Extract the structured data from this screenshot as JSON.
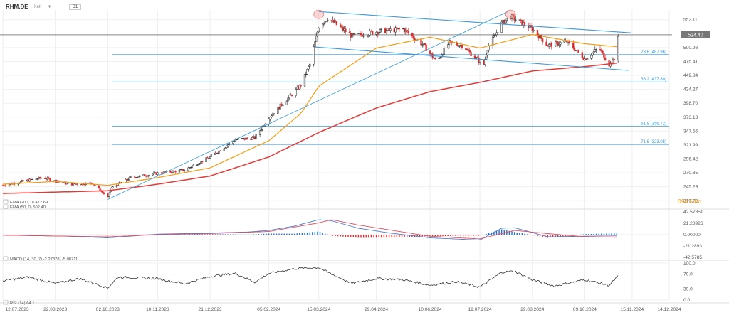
{
  "header": {
    "symbol": "RHM.DE",
    "exchange": "Xetr",
    "timeframe": "D1"
  },
  "countdown": "09h 54m",
  "last_price_label": "524.40",
  "colors": {
    "up": "#222222",
    "down": "#d32f2f",
    "ema200": "#e53935",
    "ema50": "#f39c12",
    "channel": "#3a9ad9",
    "fib": "#3a9ad9",
    "macd_line": "#4a7bd0",
    "signal_line": "#e05060",
    "hist_up": "#1e6fd6",
    "hist_down": "#d32f2f",
    "rsi": "#333333",
    "countdown": "#f39c12"
  },
  "legends": {
    "ema200": "EMA (200, 0) 472.69",
    "ema50": "EMA (50, 0) 502.40",
    "macd": "MACD (14, 30, 7) -2.27878, -5.08711",
    "rsi": "RSI (14) 64.1"
  },
  "chart_data": [
    {
      "type": "candlestick",
      "panel": "price",
      "title": "RHM.DE",
      "x_ticks": [
        "12.07.2023",
        "22.08.2023",
        "02.10.2023",
        "10.11.2023",
        "21.12.2023",
        "05.02.2024",
        "15.03.2024",
        "29.04.2024",
        "10.06.2024",
        "19.07.2024",
        "29.08.2024",
        "09.10.2024",
        "15.11.2024",
        "14.12.2024"
      ],
      "x_range": [
        "12.07.2023",
        "14.12.2024"
      ],
      "y_ticks": [
        219.72,
        245.29,
        270.85,
        296.42,
        321.99,
        347.56,
        373.13,
        398.7,
        424.27,
        449.84,
        475.41,
        500.98,
        552.11
      ],
      "ylim": [
        207,
        570
      ],
      "last_price": 524.4,
      "close_anchors": [
        {
          "date": "12.07.2023",
          "close": 248
        },
        {
          "date": "12.08.2023",
          "close": 262
        },
        {
          "date": "02.09.2023",
          "close": 250
        },
        {
          "date": "20.09.2023",
          "close": 252
        },
        {
          "date": "02.10.2023",
          "close": 226
        },
        {
          "date": "05.10.2023",
          "close": 243
        },
        {
          "date": "20.10.2023",
          "close": 262
        },
        {
          "date": "10.11.2023",
          "close": 270
        },
        {
          "date": "01.12.2023",
          "close": 276
        },
        {
          "date": "21.12.2023",
          "close": 300
        },
        {
          "date": "10.01.2024",
          "close": 332
        },
        {
          "date": "25.01.2024",
          "close": 335
        },
        {
          "date": "05.02.2024",
          "close": 373
        },
        {
          "date": "20.02.2024",
          "close": 408
        },
        {
          "date": "01.03.2024",
          "close": 432
        },
        {
          "date": "08.03.2024",
          "close": 470
        },
        {
          "date": "15.03.2024",
          "close": 540
        },
        {
          "date": "22.03.2024",
          "close": 555
        },
        {
          "date": "10.04.2024",
          "close": 522
        },
        {
          "date": "29.04.2024",
          "close": 530
        },
        {
          "date": "20.05.2024",
          "close": 535
        },
        {
          "date": "05.06.2024",
          "close": 505
        },
        {
          "date": "15.06.2024",
          "close": 475
        },
        {
          "date": "25.06.2024",
          "close": 510
        },
        {
          "date": "05.07.2024",
          "close": 505
        },
        {
          "date": "15.07.2024",
          "close": 483
        },
        {
          "date": "22.07.2024",
          "close": 470
        },
        {
          "date": "25.07.2024",
          "close": 500
        },
        {
          "date": "05.08.2024",
          "close": 545
        },
        {
          "date": "12.08.2024",
          "close": 558
        },
        {
          "date": "29.08.2024",
          "close": 535
        },
        {
          "date": "10.09.2024",
          "close": 505
        },
        {
          "date": "25.09.2024",
          "close": 512
        },
        {
          "date": "09.10.2024",
          "close": 480
        },
        {
          "date": "20.10.2024",
          "close": 500
        },
        {
          "date": "28.10.2024",
          "close": 470
        },
        {
          "date": "01.11.2024",
          "close": 478
        },
        {
          "date": "04.11.2024",
          "close": 524.4
        }
      ],
      "ema200_points": [
        {
          "date": "12.07.2023",
          "value": 233
        },
        {
          "date": "02.10.2023",
          "value": 238
        },
        {
          "date": "10.11.2023",
          "value": 250
        },
        {
          "date": "21.12.2023",
          "value": 265
        },
        {
          "date": "05.02.2024",
          "value": 300
        },
        {
          "date": "15.03.2024",
          "value": 345
        },
        {
          "date": "29.04.2024",
          "value": 390
        },
        {
          "date": "10.06.2024",
          "value": 420
        },
        {
          "date": "19.07.2024",
          "value": 437
        },
        {
          "date": "29.08.2024",
          "value": 458
        },
        {
          "date": "09.10.2024",
          "value": 466
        },
        {
          "date": "04.11.2024",
          "value": 472.69
        }
      ],
      "ema50_points": [
        {
          "date": "12.07.2023",
          "value": 250
        },
        {
          "date": "22.08.2023",
          "value": 255
        },
        {
          "date": "02.10.2023",
          "value": 248
        },
        {
          "date": "10.11.2023",
          "value": 262
        },
        {
          "date": "21.12.2023",
          "value": 280
        },
        {
          "date": "05.02.2024",
          "value": 330
        },
        {
          "date": "01.03.2024",
          "value": 380
        },
        {
          "date": "15.03.2024",
          "value": 430
        },
        {
          "date": "29.04.2024",
          "value": 500
        },
        {
          "date": "10.06.2024",
          "value": 520
        },
        {
          "date": "19.07.2024",
          "value": 500
        },
        {
          "date": "29.08.2024",
          "value": 525
        },
        {
          "date": "09.10.2024",
          "value": 508
        },
        {
          "date": "04.11.2024",
          "value": 502.4
        }
      ],
      "fibonacci": [
        {
          "label": "23.6 (487.96)",
          "value": 487.96
        },
        {
          "label": "38.2 (437.80)",
          "value": 437.8
        },
        {
          "label": "61.8 (356.72)",
          "value": 356.72
        },
        {
          "label": "71.6 (323.05)",
          "value": 323.05
        }
      ],
      "trendlines": [
        {
          "name": "channel-upper",
          "from": {
            "date": "15.03.2024",
            "value": 567
          },
          "to": {
            "date": "14.11.2024",
            "value": 528
          }
        },
        {
          "name": "channel-lower",
          "from": {
            "date": "12.03.2024",
            "value": 502
          },
          "to": {
            "date": "12.11.2024",
            "value": 459
          }
        },
        {
          "name": "rising-trend",
          "from": {
            "date": "02.10.2023",
            "value": 222
          },
          "to": {
            "date": "10.08.2024",
            "value": 567
          }
        }
      ],
      "highlights": [
        {
          "date": "15.03.2024",
          "value": 562
        },
        {
          "date": "12.08.2024",
          "value": 562
        }
      ]
    },
    {
      "type": "bar+line",
      "panel": "macd",
      "y_ticks": [
        42.57851,
        21.28926,
        0.0,
        -21.2893,
        -42.5785
      ],
      "ylim": [
        -42.5785,
        42.57851
      ],
      "macd_points": [
        {
          "date": "12.07.2023",
          "value": -1
        },
        {
          "date": "01.09.2023",
          "value": -3
        },
        {
          "date": "02.10.2023",
          "value": -6
        },
        {
          "date": "10.11.2023",
          "value": 1
        },
        {
          "date": "21.12.2023",
          "value": 3
        },
        {
          "date": "20.01.2024",
          "value": 5
        },
        {
          "date": "05.02.2024",
          "value": 8
        },
        {
          "date": "25.02.2024",
          "value": 16
        },
        {
          "date": "15.03.2024",
          "value": 28
        },
        {
          "date": "25.03.2024",
          "value": 26
        },
        {
          "date": "15.04.2024",
          "value": 12
        },
        {
          "date": "10.05.2024",
          "value": 3
        },
        {
          "date": "10.06.2024",
          "value": -6
        },
        {
          "date": "19.07.2024",
          "value": -10
        },
        {
          "date": "05.08.2024",
          "value": 12
        },
        {
          "date": "15.08.2024",
          "value": 13
        },
        {
          "date": "10.09.2024",
          "value": -4
        },
        {
          "date": "09.10.2024",
          "value": -3
        },
        {
          "date": "04.11.2024",
          "value": -2.28
        }
      ],
      "signal_points": [
        {
          "date": "12.07.2023",
          "value": -1
        },
        {
          "date": "02.10.2023",
          "value": -4
        },
        {
          "date": "10.11.2023",
          "value": 0
        },
        {
          "date": "21.12.2023",
          "value": 2
        },
        {
          "date": "05.02.2024",
          "value": 6
        },
        {
          "date": "15.03.2024",
          "value": 22
        },
        {
          "date": "25.03.2024",
          "value": 28
        },
        {
          "date": "15.04.2024",
          "value": 18
        },
        {
          "date": "10.06.2024",
          "value": -3
        },
        {
          "date": "19.07.2024",
          "value": -8
        },
        {
          "date": "15.08.2024",
          "value": 8
        },
        {
          "date": "10.09.2024",
          "value": 2
        },
        {
          "date": "09.10.2024",
          "value": -4
        },
        {
          "date": "04.11.2024",
          "value": -5.09
        }
      ]
    },
    {
      "type": "line",
      "panel": "rsi",
      "y_ticks": [
        100.0,
        70.0,
        30.0,
        0.0
      ],
      "ylim": [
        0,
        100
      ],
      "rsi_points": [
        {
          "date": "12.07.2023",
          "value": 52
        },
        {
          "date": "01.08.2023",
          "value": 62
        },
        {
          "date": "22.08.2023",
          "value": 45
        },
        {
          "date": "10.09.2023",
          "value": 58
        },
        {
          "date": "02.10.2023",
          "value": 33
        },
        {
          "date": "10.10.2023",
          "value": 62
        },
        {
          "date": "10.11.2023",
          "value": 58
        },
        {
          "date": "01.12.2023",
          "value": 44
        },
        {
          "date": "21.12.2023",
          "value": 64
        },
        {
          "date": "10.01.2024",
          "value": 72
        },
        {
          "date": "25.01.2024",
          "value": 48
        },
        {
          "date": "05.02.2024",
          "value": 72
        },
        {
          "date": "25.02.2024",
          "value": 85
        },
        {
          "date": "15.03.2024",
          "value": 88
        },
        {
          "date": "25.03.2024",
          "value": 70
        },
        {
          "date": "10.04.2024",
          "value": 45
        },
        {
          "date": "29.04.2024",
          "value": 58
        },
        {
          "date": "20.05.2024",
          "value": 55
        },
        {
          "date": "10.06.2024",
          "value": 40
        },
        {
          "date": "01.07.2024",
          "value": 50
        },
        {
          "date": "19.07.2024",
          "value": 35
        },
        {
          "date": "05.08.2024",
          "value": 75
        },
        {
          "date": "15.08.2024",
          "value": 78
        },
        {
          "date": "29.08.2024",
          "value": 55
        },
        {
          "date": "15.09.2024",
          "value": 38
        },
        {
          "date": "09.10.2024",
          "value": 55
        },
        {
          "date": "28.10.2024",
          "value": 40
        },
        {
          "date": "04.11.2024",
          "value": 64.1
        }
      ]
    }
  ]
}
